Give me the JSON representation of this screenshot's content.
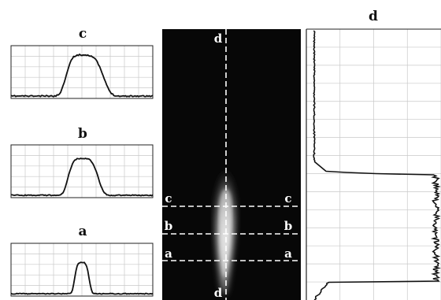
{
  "titles": {
    "c": "c",
    "b": "b",
    "a": "a",
    "d": "d"
  },
  "image_labels": {
    "d_top": "d",
    "d_bottom": "d",
    "c_left": "c",
    "c_right": "c",
    "b_left": "b",
    "b_right": "b",
    "a_left": "a",
    "a_right": "a"
  },
  "colors": {
    "frame": "#222222",
    "grid": "#c8c8c8",
    "trace": "#111111",
    "image_bg": "#070707",
    "dash": "#ffffff"
  }
}
